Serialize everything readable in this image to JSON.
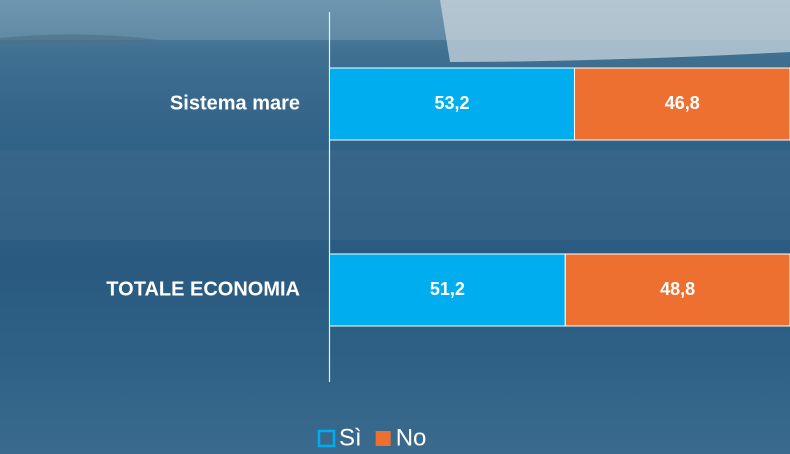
{
  "chart_data": {
    "type": "stacked-bar-horizontal",
    "categories": [
      "Sistema mare",
      "TOTALE ECONOMIA"
    ],
    "series": [
      {
        "name": "Sì",
        "color": "#00adef",
        "values": [
          53.2,
          51.2
        ],
        "value_labels": [
          "53,2",
          "51,2"
        ]
      },
      {
        "name": "No",
        "color": "#ed7031",
        "values": [
          46.8,
          48.8
        ],
        "value_labels": [
          "46,8",
          "48,8"
        ]
      }
    ],
    "xlim": [
      0,
      100
    ],
    "legend": "bottom"
  }
}
